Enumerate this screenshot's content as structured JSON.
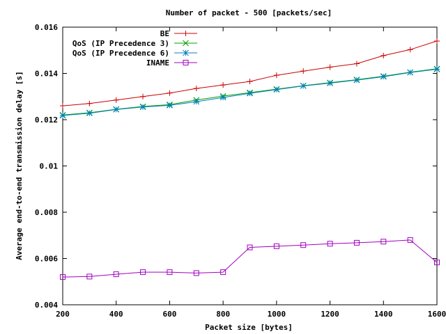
{
  "chart_data": {
    "type": "line",
    "title": "Number of packet - 500 [packets/sec]",
    "xlabel": "Packet size [bytes]",
    "ylabel": "Average end-to-end transmission delay [s]",
    "xlim": [
      200,
      1600
    ],
    "ylim": [
      0.004,
      0.016
    ],
    "xticks": [
      "200",
      "400",
      "600",
      "800",
      "1000",
      "1200",
      "1400",
      "1600"
    ],
    "yticks": [
      "0.004",
      "0.006",
      "0.008",
      "0.01",
      "0.012",
      "0.014",
      "0.016"
    ],
    "legend_position": "top-right",
    "grid": false,
    "x": [
      200,
      300,
      400,
      500,
      600,
      700,
      800,
      900,
      1000,
      1100,
      1200,
      1300,
      1400,
      1500,
      1600
    ],
    "series": [
      {
        "name": "BE",
        "marker": "plus",
        "color": "#cc0000",
        "values": [
          0.0126,
          0.0127,
          0.01285,
          0.013,
          0.01315,
          0.01335,
          0.0135,
          0.01365,
          0.01392,
          0.0141,
          0.01427,
          0.01442,
          0.01477,
          0.01503,
          0.0154
        ]
      },
      {
        "name": "QoS (IP Precedence 3)",
        "marker": "cross",
        "color": "#00a000",
        "values": [
          0.0122,
          0.0123,
          0.01245,
          0.01257,
          0.01265,
          0.01285,
          0.01302,
          0.01317,
          0.01332,
          0.01347,
          0.0136,
          0.01373,
          0.01388,
          0.01405,
          0.0142
        ]
      },
      {
        "name": "QoS (IP Precedence 6)",
        "marker": "star",
        "color": "#0080c0",
        "values": [
          0.01218,
          0.01228,
          0.01244,
          0.01255,
          0.01262,
          0.01278,
          0.01296,
          0.01314,
          0.0133,
          0.01346,
          0.01358,
          0.01371,
          0.01386,
          0.01404,
          0.01418
        ]
      },
      {
        "name": "INAME",
        "marker": "square",
        "color": "#a000c0",
        "values": [
          0.0052,
          0.00522,
          0.00532,
          0.00541,
          0.00541,
          0.00537,
          0.00541,
          0.00648,
          0.00653,
          0.00658,
          0.00664,
          0.00668,
          0.00673,
          0.0068,
          0.00583
        ]
      }
    ]
  }
}
